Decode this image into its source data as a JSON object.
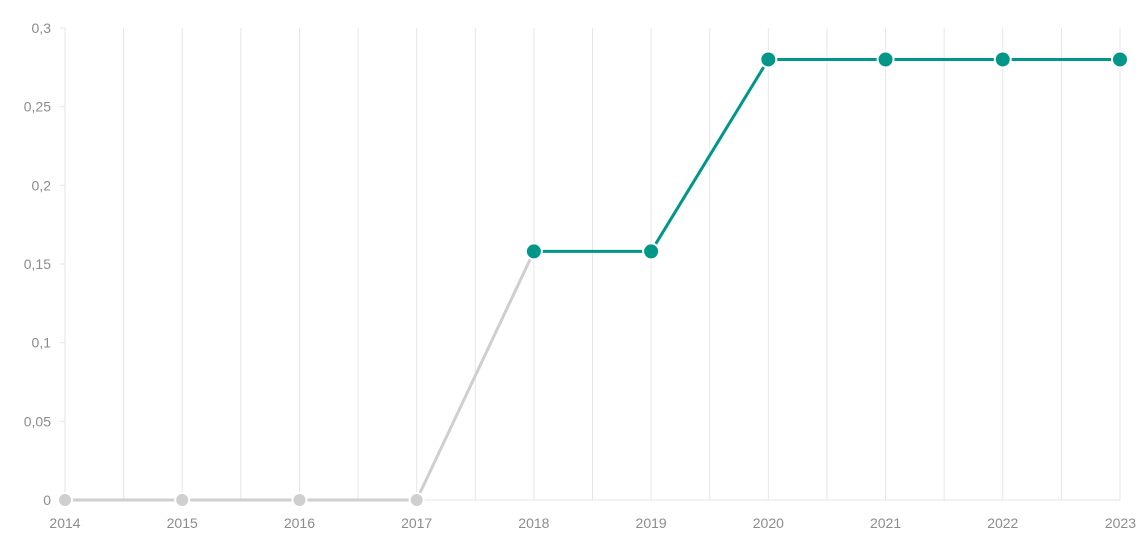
{
  "chart_data": {
    "type": "line",
    "x": [
      "2014",
      "2015",
      "2016",
      "2017",
      "2018",
      "2019",
      "2020",
      "2021",
      "2022",
      "2023"
    ],
    "series": [
      {
        "values": [
          0,
          0,
          0,
          0,
          0.158,
          0.158,
          0.28,
          0.28,
          0.28,
          0.28
        ]
      }
    ],
    "y_ticks": [
      0,
      0.05,
      0.1,
      0.15,
      0.2,
      0.25,
      0.3
    ],
    "y_tick_labels": [
      "0",
      "0,05",
      "0,1",
      "0,15",
      "0,2",
      "0,25",
      "0,3"
    ],
    "x_tick_labels": [
      "2014",
      "2015",
      "2016",
      "2017",
      "2018",
      "2019",
      "2020",
      "2021",
      "2022",
      "2023"
    ],
    "ylim": [
      0,
      0.3
    ],
    "grid": "vertical",
    "legend": "none",
    "title": "",
    "xlabel": "",
    "ylabel": "",
    "colors": {
      "active": "#009688",
      "inactive": "#cfcfcf",
      "grid": "#e6e6e6",
      "label": "#8c8c8c"
    }
  }
}
